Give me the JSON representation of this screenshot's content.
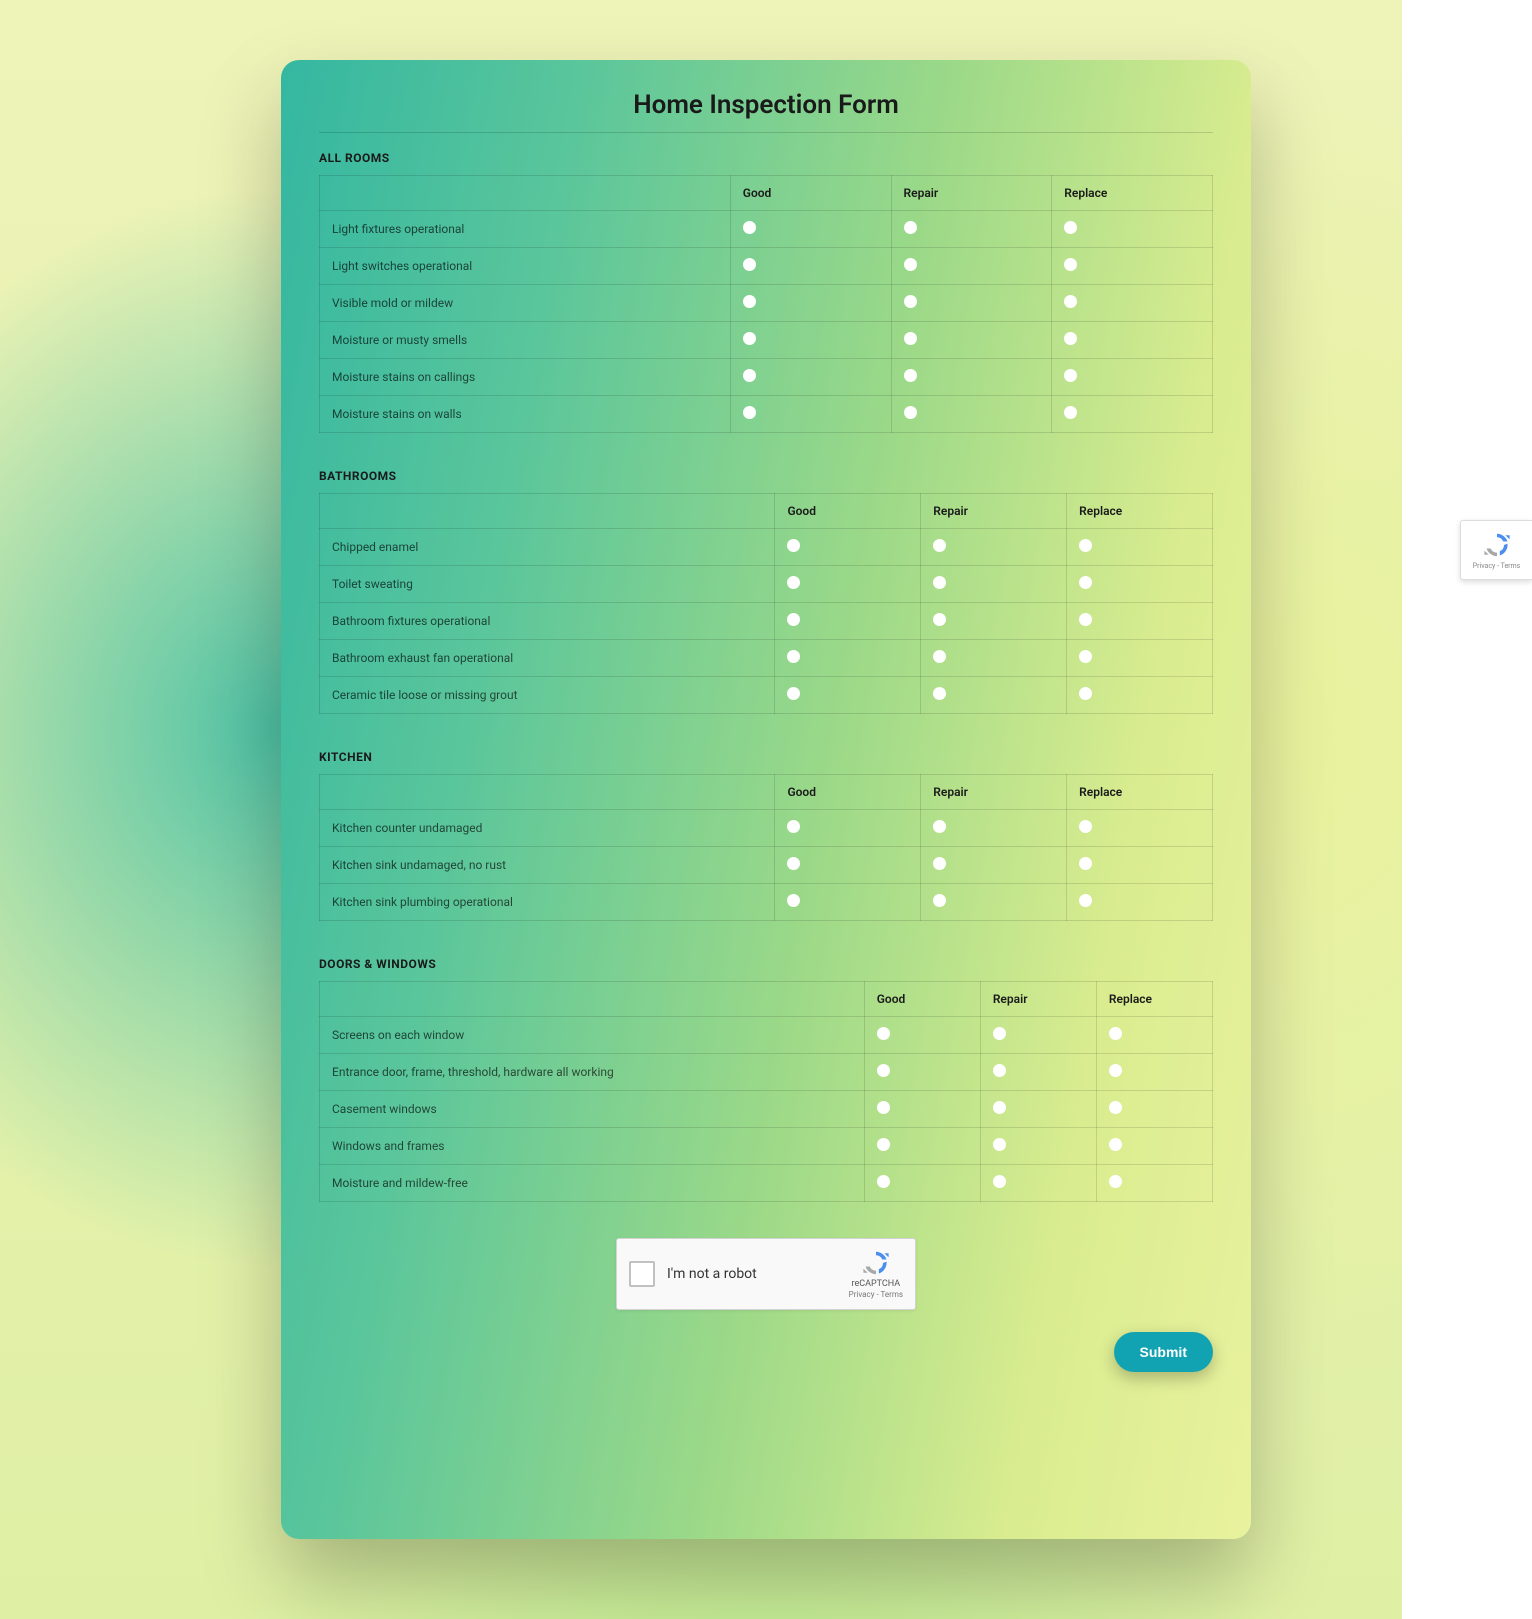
{
  "form": {
    "title": "Home Inspection Form",
    "submit_label": "Submit",
    "submit_color": "#12a3b3",
    "card_gradient": [
      "#34b7a1",
      "#5bc69b",
      "#9cd988",
      "#d9ec8f",
      "#e9f29e"
    ],
    "background_gradient": [
      "#eef3b8",
      "#b9ea8e",
      "#4fc2a5",
      "#e8f29c"
    ]
  },
  "captcha": {
    "label": "I'm not a robot",
    "brand_name": "reCAPTCHA",
    "brand_links": "Privacy - Terms",
    "logo_colors": {
      "blue": "#4a8ff0",
      "gray": "#a8a8a8"
    }
  },
  "badge": {
    "links": "Privacy - Terms"
  },
  "columns": [
    "Good",
    "Repair",
    "Replace"
  ],
  "sections": [
    {
      "title": "ALL ROOMS",
      "first_col_width": "46%",
      "rows": [
        "Light fixtures operational",
        "Light switches operational",
        "Visible mold or mildew",
        "Moisture or musty smells",
        "Moisture stains on callings",
        "Moisture stains on walls"
      ]
    },
    {
      "title": "BATHROOMS",
      "first_col_width": "51%",
      "rows": [
        "Chipped enamel",
        "Toilet sweating",
        "Bathroom fixtures operational",
        "Bathroom exhaust fan operational",
        "Ceramic tile loose or missing grout"
      ]
    },
    {
      "title": "KITCHEN",
      "first_col_width": "51%",
      "rows": [
        "Kitchen counter undamaged",
        "Kitchen sink undamaged, no rust",
        "Kitchen sink plumbing operational"
      ]
    },
    {
      "title": "DOORS & WINDOWS",
      "first_col_width": "61%",
      "rows": [
        "Screens on each window",
        "Entrance door, frame, threshold, hardware all working",
        "Casement windows",
        "Windows and frames",
        "Moisture and mildew-free"
      ]
    }
  ]
}
